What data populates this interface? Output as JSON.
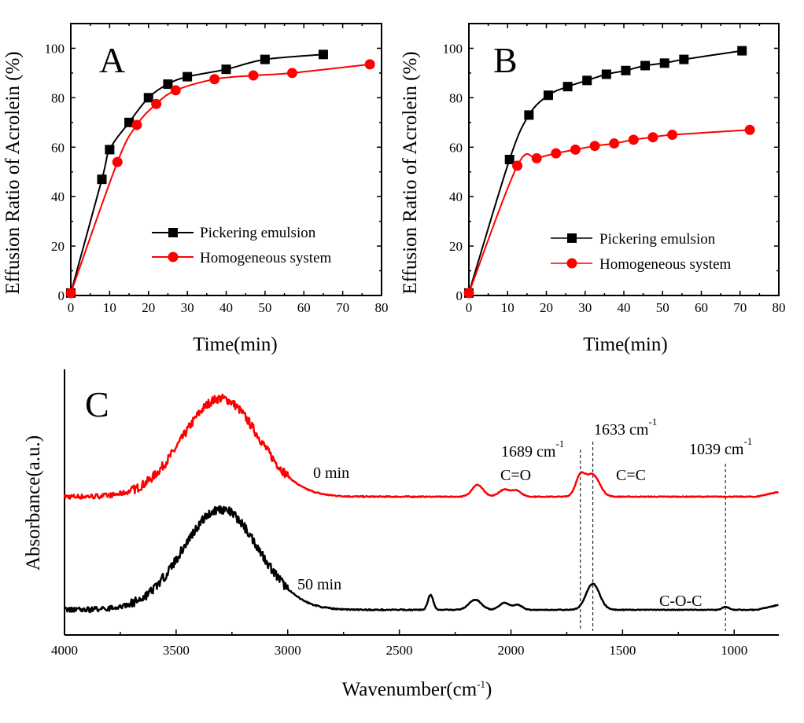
{
  "chart_data": [
    {
      "type": "line",
      "panel_label": "A",
      "xlabel": "Time(min)",
      "ylabel": "Effusion Ratio of Acrolein (%)",
      "xlim": [
        0,
        80
      ],
      "ylim": [
        0,
        110
      ],
      "xticks": [
        "0",
        "10",
        "20",
        "30",
        "40",
        "50",
        "60",
        "70",
        "80"
      ],
      "yticks": [
        "0",
        "20",
        "40",
        "60",
        "80",
        "100"
      ],
      "legend_position": "bottom-right",
      "series": [
        {
          "name": "Pickering emulsion",
          "color": "#000000",
          "marker": "square",
          "x": [
            0,
            8,
            10,
            15,
            20,
            25,
            30,
            40,
            50,
            65
          ],
          "y": [
            1,
            47,
            59,
            70,
            80,
            85.5,
            88.5,
            91.5,
            95.5,
            97.5
          ]
        },
        {
          "name": "Homogeneous system",
          "color": "#ff0000",
          "marker": "circle",
          "x": [
            0,
            12,
            17,
            22,
            27,
            37,
            47,
            57,
            77
          ],
          "y": [
            1,
            54,
            69,
            77.5,
            83,
            87.5,
            89,
            90,
            93.5
          ]
        }
      ]
    },
    {
      "type": "line",
      "panel_label": "B",
      "xlabel": "Time(min)",
      "ylabel": "Effusion Ratio of Acrolein (%)",
      "xlim": [
        0,
        80
      ],
      "ylim": [
        0,
        110
      ],
      "xticks": [
        "0",
        "10",
        "20",
        "30",
        "40",
        "50",
        "60",
        "70",
        "80"
      ],
      "yticks": [
        "0",
        "20",
        "40",
        "60",
        "80",
        "100"
      ],
      "legend_position": "bottom-right",
      "series": [
        {
          "name": "Pickering emulsion",
          "color": "#000000",
          "marker": "square",
          "x": [
            0,
            10.5,
            15.5,
            20.5,
            25.5,
            30.5,
            35.5,
            40.5,
            45.5,
            50.5,
            55.5,
            70.5
          ],
          "y": [
            1,
            55,
            73,
            81,
            84.5,
            87,
            89.5,
            91,
            93,
            94,
            95.5,
            99
          ]
        },
        {
          "name": "Homogeneous system",
          "color": "#ff0000",
          "marker": "circle",
          "x": [
            0,
            12.5,
            17.5,
            22.5,
            27.5,
            32.5,
            37.5,
            42.5,
            47.5,
            52.5,
            72.5
          ],
          "y": [
            1,
            52.5,
            55.5,
            57.5,
            59,
            60.5,
            61.5,
            63,
            64,
            65,
            67
          ]
        }
      ]
    },
    {
      "type": "line",
      "panel_label": "C",
      "xlabel": "Wavenumber(cm",
      "xlabel_sup": "-1",
      "xlabel_suffix": ")",
      "ylabel": "Absorbance(a.u.)",
      "xlim": [
        4000,
        800
      ],
      "x_reversed": true,
      "xticks": [
        "4000",
        "3500",
        "3000",
        "2500",
        "2000",
        "1500",
        "1000"
      ],
      "y_ticks_shown": false,
      "series": [
        {
          "name": "0 min",
          "color": "#ff0000",
          "peaks": [
            {
              "x": 3300,
              "height": 1.0,
              "width": 170
            },
            {
              "x": 2150,
              "height": 0.12,
              "width": 25
            },
            {
              "x": 2030,
              "height": 0.07,
              "width": 25
            },
            {
              "x": 1975,
              "height": 0.06,
              "width": 22
            },
            {
              "x": 1689,
              "height": 0.2,
              "width": 22
            },
            {
              "x": 1633,
              "height": 0.22,
              "width": 30
            }
          ]
        },
        {
          "name": "50 min",
          "color": "#000000",
          "peaks": [
            {
              "x": 3300,
              "height": 1.0,
              "width": 170
            },
            {
              "x": 2360,
              "height": 0.15,
              "width": 12
            },
            {
              "x": 2160,
              "height": 0.1,
              "width": 28
            },
            {
              "x": 2030,
              "height": 0.07,
              "width": 22
            },
            {
              "x": 1970,
              "height": 0.05,
              "width": 20
            },
            {
              "x": 1633,
              "height": 0.26,
              "width": 30
            },
            {
              "x": 1039,
              "height": 0.03,
              "width": 15
            }
          ]
        }
      ],
      "reference_lines": [
        1689,
        1633,
        1039
      ],
      "annotations": {
        "peak1_num": "1689 cm",
        "peak1_sup": "-1",
        "peak2_num": "1633 cm",
        "peak2_sup": "-1",
        "peak3_num": "1039 cm",
        "peak3_sup": "-1",
        "carbonyl": "C=O",
        "vinyl": "C=C",
        "ether": "C-O-C"
      }
    }
  ]
}
